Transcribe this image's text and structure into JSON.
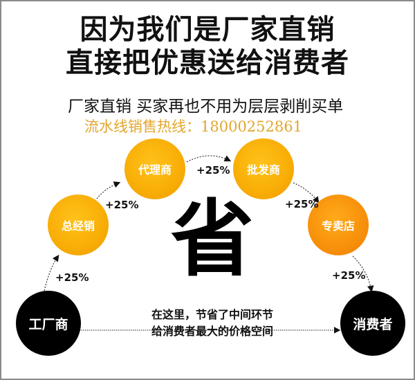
{
  "headline": [
    "因为我们是厂家直销",
    "直接把优惠送给消费者"
  ],
  "subtitle": "厂家直销  买家再也不用为层层剥削买单",
  "hotline": "流水线销售热线：18000252861",
  "nodes": [
    "工厂商",
    "总经销",
    "代理商",
    "批发商",
    "专卖店",
    "消费者"
  ],
  "markups": [
    "+25%",
    "+25%",
    "+25%",
    "+25%",
    "+25%"
  ],
  "center_char": "省",
  "note": [
    "在这里，节省了中间环节",
    "给消费者最大的价格空间"
  ],
  "colors": {
    "node_gold": "#f8ad06",
    "node_orange": "#f7900a",
    "node_black": "#000000",
    "hotline": "#e3a62d"
  }
}
